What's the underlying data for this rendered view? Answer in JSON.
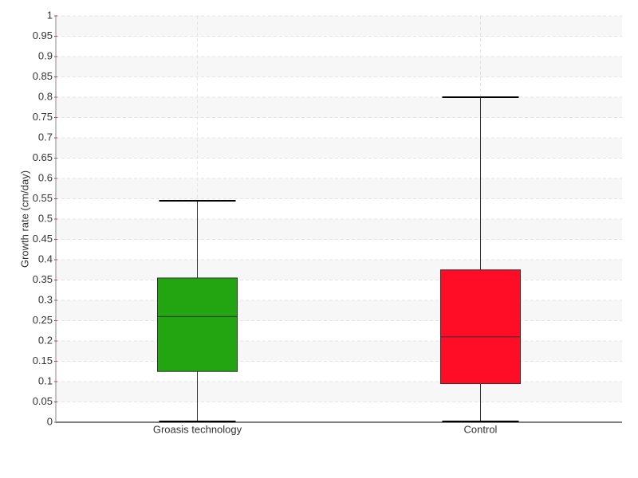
{
  "chart_data": {
    "type": "box",
    "y_label": "Growth rate (cm/day)",
    "categories": [
      "Groasis technology",
      "Control"
    ],
    "boxes": [
      {
        "min": 0,
        "q1": 0.125,
        "median": 0.26,
        "q3": 0.355,
        "max": 0.545,
        "color": "#22a510"
      },
      {
        "min": 0,
        "q1": 0.095,
        "median": 0.21,
        "q3": 0.375,
        "max": 0.8,
        "color": "#ff0d26"
      }
    ],
    "ylim": [
      0,
      1
    ],
    "yticks": [
      0,
      0.05,
      0.1,
      0.15,
      0.2,
      0.25,
      0.3,
      0.35,
      0.4,
      0.45,
      0.5,
      0.55,
      0.6,
      0.65,
      0.7,
      0.75,
      0.8,
      0.85,
      0.9,
      0.95,
      1
    ],
    "grid": true
  }
}
